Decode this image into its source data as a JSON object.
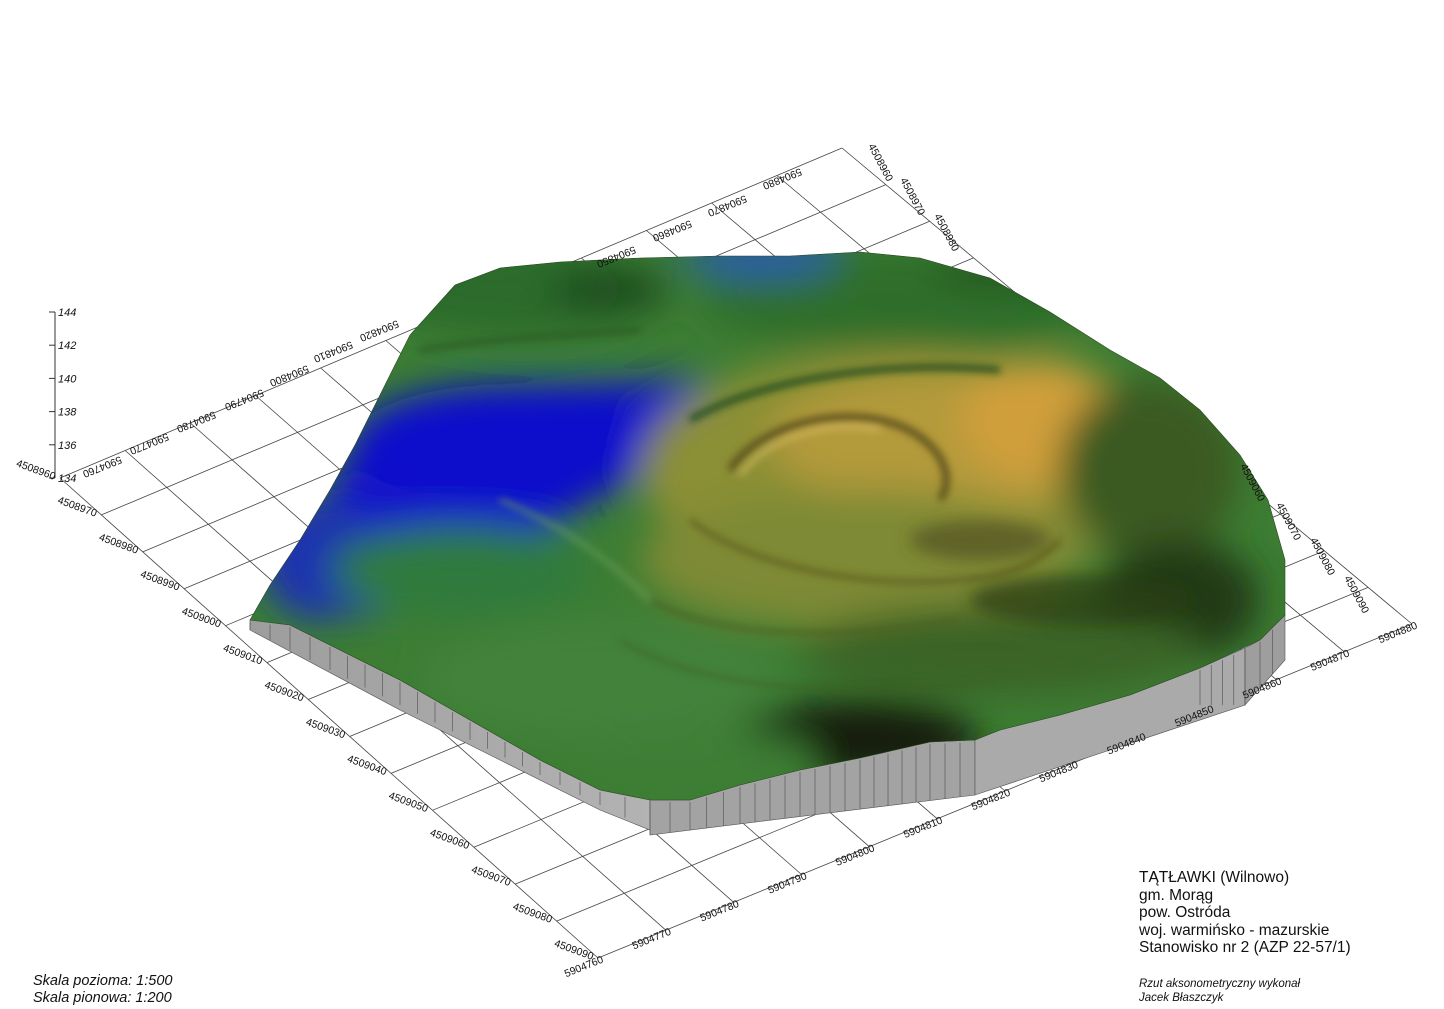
{
  "legend": {
    "site_name": "TĄTŁAWKI (Wilnowo)",
    "commune": "gm. Morąg",
    "county": "pow. Ostróda",
    "province": "woj. warmińsko - mazurskie",
    "site_number": "Stanowisko nr 2 (AZP 22-57/1)"
  },
  "author": {
    "line1": "Rzut aksonometryczny wykonał",
    "line2": "Jacek Błaszczyk"
  },
  "scale": {
    "horizontal": "Skala pozioma: 1:500",
    "vertical": "Skala pionowa: 1:200"
  },
  "axes": {
    "front_right_x": [
      "5904760",
      "5904770",
      "5904780",
      "5904790",
      "5904800",
      "5904810",
      "5904820",
      "5904830",
      "5904840",
      "5904850",
      "5904860",
      "5904870",
      "5904880"
    ],
    "front_left_y": [
      "4509090",
      "4509080",
      "4509070",
      "4509060",
      "4509050",
      "4509040",
      "4509030",
      "4509020",
      "4509010",
      "4509000",
      "4508990",
      "4508980",
      "4508970",
      "4508960"
    ],
    "back_left_x": [
      "5904760",
      "5904770",
      "5904780",
      "5904790",
      "5904800",
      "5904810",
      "5904820"
    ],
    "back_top_x": [
      "5904850",
      "5904860",
      "5904870",
      "5904880"
    ],
    "back_right_y": [
      "4508960",
      "4508970",
      "4508980",
      "4509060",
      "4509070",
      "4509080",
      "4509090"
    ],
    "z": [
      "134",
      "136",
      "138",
      "140",
      "142",
      "144"
    ]
  },
  "colors": {
    "low": "#1010c8",
    "mid": "#2f7a2c",
    "high": "#c9a43e",
    "dark": "#15200e",
    "base_wall": "#a9a9a9"
  }
}
